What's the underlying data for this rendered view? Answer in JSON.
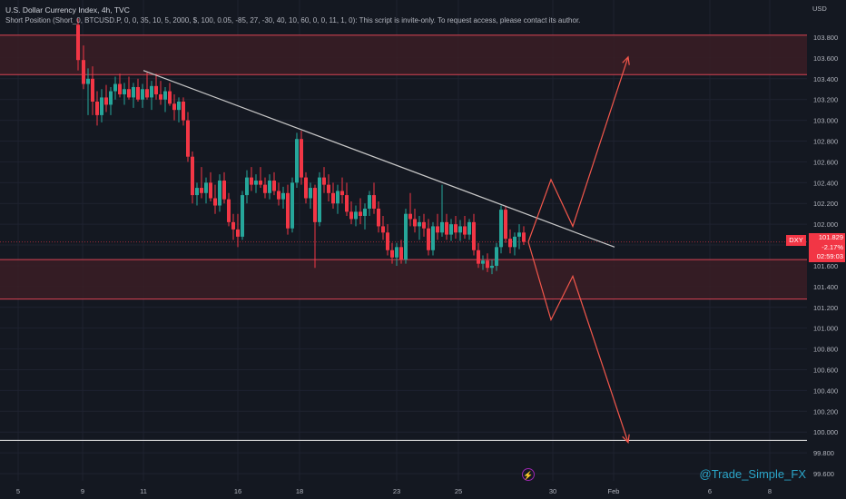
{
  "header": {
    "title": "U.S. Dollar Currency Index, 4h, TVC",
    "indicator": "Short Position (Short_0, BTCUSD.P, 0, 0, 35, 10, 5, 2000, $, 100, 0.05, -85, 27, -30, 40, 10, 60, 0, 0, 11, 1, 0): This script is invite-only. To request access, please contact its author."
  },
  "price_axis": {
    "currency": "USD",
    "ticks": [
      "103.800",
      "103.600",
      "103.400",
      "103.200",
      "103.000",
      "102.800",
      "102.600",
      "102.400",
      "102.200",
      "102.000",
      "101.800",
      "101.600",
      "101.400",
      "101.200",
      "101.000",
      "100.800",
      "100.600",
      "100.400",
      "100.200",
      "100.000",
      "99.800",
      "99.600"
    ]
  },
  "time_axis": {
    "ticks": [
      "5",
      "9",
      "11",
      "16",
      "18",
      "23",
      "25",
      "30",
      "Feb",
      "6",
      "8"
    ]
  },
  "current_price": {
    "symbol": "DXY",
    "price": "101.829",
    "change": "-2.17%",
    "countdown": "02:59:03"
  },
  "watermark": "@Trade_Simple_FX",
  "lightning_icon": "lightning-icon",
  "colors": {
    "background": "#141821",
    "bull": "#26a69a",
    "bear": "#f23645",
    "zone_fill": "#3a1d24",
    "zone_border": "#d94353",
    "trendline": "#c8c8c8",
    "projection": "#f4574b",
    "grid": "#1e2230"
  },
  "chart_data": {
    "type": "candlestick",
    "timeframe": "4h",
    "y_range": [
      99.55,
      103.98
    ],
    "resistance_zone": [
      103.44,
      103.82
    ],
    "support_zone": [
      101.28,
      101.66
    ],
    "horizontal_line": 99.92,
    "trendline": {
      "from": {
        "x": 158,
        "y": 103.48
      },
      "to": {
        "x": 677,
        "y": 101.78
      }
    },
    "projection_up": [
      [
        582,
        101.83
      ],
      [
        607,
        102.43
      ],
      [
        631,
        101.98
      ],
      [
        692,
        103.61
      ]
    ],
    "projection_down": [
      [
        582,
        101.83
      ],
      [
        607,
        101.08
      ],
      [
        631,
        101.5
      ],
      [
        692,
        99.9
      ]
    ],
    "candles": [
      [
        86,
        103.92,
        103.98,
        103.48,
        103.58
      ],
      [
        92,
        103.58,
        103.72,
        103.3,
        103.35
      ],
      [
        97,
        103.35,
        103.5,
        103.05,
        103.4
      ],
      [
        102,
        103.4,
        103.52,
        103.05,
        103.18
      ],
      [
        107,
        103.18,
        103.28,
        102.95,
        103.05
      ],
      [
        112,
        103.05,
        103.3,
        102.98,
        103.22
      ],
      [
        117,
        103.22,
        103.34,
        103.08,
        103.15
      ],
      [
        122,
        103.15,
        103.32,
        103.05,
        103.28
      ],
      [
        127,
        103.28,
        103.42,
        103.2,
        103.35
      ],
      [
        132,
        103.35,
        103.45,
        103.22,
        103.25
      ],
      [
        137,
        103.25,
        103.36,
        103.15,
        103.3
      ],
      [
        142,
        103.3,
        103.42,
        103.2,
        103.22
      ],
      [
        147,
        103.22,
        103.36,
        103.12,
        103.32
      ],
      [
        152,
        103.32,
        103.4,
        103.18,
        103.2
      ],
      [
        157,
        103.2,
        103.35,
        103.12,
        103.3
      ],
      [
        162,
        103.3,
        103.46,
        103.2,
        103.22
      ],
      [
        167,
        103.22,
        103.38,
        103.1,
        103.33
      ],
      [
        172,
        103.33,
        103.45,
        103.2,
        103.25
      ],
      [
        177,
        103.25,
        103.38,
        103.15,
        103.2
      ],
      [
        182,
        103.2,
        103.32,
        103.08,
        103.28
      ],
      [
        187,
        103.28,
        103.36,
        103.14,
        103.16
      ],
      [
        192,
        103.16,
        103.25,
        103.0,
        103.1
      ],
      [
        197,
        103.1,
        103.22,
        102.98,
        103.18
      ],
      [
        202,
        103.18,
        103.22,
        102.95,
        103.0
      ],
      [
        207,
        103.0,
        103.08,
        102.6,
        102.65
      ],
      [
        212,
        102.65,
        102.7,
        102.2,
        102.28
      ],
      [
        217,
        102.28,
        102.4,
        102.18,
        102.35
      ],
      [
        222,
        102.35,
        102.55,
        102.25,
        102.3
      ],
      [
        227,
        102.3,
        102.45,
        102.2,
        102.4
      ],
      [
        232,
        102.4,
        102.5,
        102.22,
        102.25
      ],
      [
        237,
        102.25,
        102.38,
        102.1,
        102.18
      ],
      [
        242,
        102.18,
        102.48,
        102.12,
        102.42
      ],
      [
        247,
        102.42,
        102.5,
        102.2,
        102.24
      ],
      [
        252,
        102.24,
        102.3,
        101.98,
        102.02
      ],
      [
        257,
        102.02,
        102.1,
        101.85,
        101.95
      ],
      [
        262,
        101.95,
        102.1,
        101.78,
        101.88
      ],
      [
        267,
        101.88,
        102.32,
        101.85,
        102.28
      ],
      [
        272,
        102.28,
        102.52,
        102.2,
        102.45
      ],
      [
        277,
        102.45,
        102.55,
        102.32,
        102.38
      ],
      [
        282,
        102.38,
        102.48,
        102.3,
        102.42
      ],
      [
        287,
        102.42,
        102.55,
        102.35,
        102.38
      ],
      [
        292,
        102.38,
        102.45,
        102.25,
        102.3
      ],
      [
        297,
        102.3,
        102.48,
        102.24,
        102.42
      ],
      [
        302,
        102.42,
        102.5,
        102.28,
        102.32
      ],
      [
        307,
        102.32,
        102.4,
        102.18,
        102.24
      ],
      [
        312,
        102.24,
        102.36,
        102.15,
        102.3
      ],
      [
        317,
        102.3,
        102.38,
        101.9,
        101.96
      ],
      [
        322,
        101.96,
        102.45,
        101.92,
        102.4
      ],
      [
        327,
        102.4,
        102.88,
        102.35,
        102.82
      ],
      [
        332,
        102.82,
        102.9,
        102.38,
        102.45
      ],
      [
        337,
        102.45,
        102.5,
        102.2,
        102.25
      ],
      [
        342,
        102.25,
        102.4,
        102.15,
        102.35
      ],
      [
        347,
        102.35,
        102.38,
        101.58,
        102.02
      ],
      [
        352,
        102.02,
        102.5,
        101.98,
        102.45
      ],
      [
        357,
        102.45,
        102.55,
        102.3,
        102.38
      ],
      [
        362,
        102.38,
        102.48,
        102.22,
        102.3
      ],
      [
        367,
        102.3,
        102.4,
        102.15,
        102.2
      ],
      [
        372,
        102.2,
        102.38,
        102.1,
        102.32
      ],
      [
        377,
        102.32,
        102.45,
        102.2,
        102.28
      ],
      [
        382,
        102.28,
        102.4,
        102.08,
        102.12
      ],
      [
        387,
        102.12,
        102.22,
        102.0,
        102.05
      ],
      [
        392,
        102.05,
        102.18,
        101.98,
        102.12
      ],
      [
        397,
        102.12,
        102.25,
        102.0,
        102.08
      ],
      [
        402,
        102.08,
        102.2,
        101.95,
        102.15
      ],
      [
        407,
        102.15,
        102.32,
        102.08,
        102.28
      ],
      [
        412,
        102.28,
        102.4,
        102.1,
        102.15
      ],
      [
        417,
        102.15,
        102.22,
        101.92,
        101.98
      ],
      [
        422,
        101.98,
        102.08,
        101.85,
        101.92
      ],
      [
        427,
        101.92,
        102.0,
        101.7,
        101.75
      ],
      [
        432,
        101.75,
        101.82,
        101.62,
        101.68
      ],
      [
        437,
        101.68,
        101.82,
        101.6,
        101.78
      ],
      [
        442,
        101.78,
        101.85,
        101.62,
        101.66
      ],
      [
        447,
        101.66,
        102.15,
        101.62,
        102.1
      ],
      [
        452,
        102.1,
        102.3,
        101.98,
        102.05
      ],
      [
        457,
        102.05,
        102.15,
        101.92,
        101.98
      ],
      [
        462,
        101.98,
        102.08,
        101.85,
        102.02
      ],
      [
        467,
        102.02,
        102.1,
        101.88,
        101.96
      ],
      [
        472,
        101.96,
        102.05,
        101.7,
        101.75
      ],
      [
        477,
        101.75,
        102.02,
        101.7,
        101.98
      ],
      [
        482,
        101.98,
        102.1,
        101.85,
        101.92
      ],
      [
        487,
        101.92,
        102.38,
        101.88,
        102.02
      ],
      [
        492,
        102.02,
        102.1,
        101.85,
        101.9
      ],
      [
        497,
        101.9,
        102.05,
        101.84,
        102.0
      ],
      [
        502,
        102.0,
        102.08,
        101.86,
        101.92
      ],
      [
        507,
        101.92,
        102.04,
        101.84,
        101.98
      ],
      [
        512,
        101.98,
        102.08,
        101.86,
        101.9
      ],
      [
        517,
        101.9,
        102.05,
        101.85,
        102.02
      ],
      [
        522,
        102.02,
        102.1,
        101.7,
        101.75
      ],
      [
        527,
        101.75,
        101.82,
        101.58,
        101.62
      ],
      [
        532,
        101.62,
        101.7,
        101.56,
        101.65
      ],
      [
        537,
        101.65,
        101.72,
        101.54,
        101.58
      ],
      [
        542,
        101.58,
        101.66,
        101.52,
        101.6
      ],
      [
        547,
        101.6,
        101.82,
        101.55,
        101.78
      ],
      [
        552,
        101.78,
        102.18,
        101.72,
        102.14
      ],
      [
        557,
        102.14,
        102.18,
        101.82,
        101.86
      ],
      [
        562,
        101.86,
        101.95,
        101.72,
        101.78
      ],
      [
        567,
        101.78,
        101.92,
        101.7,
        101.88
      ],
      [
        572,
        101.88,
        102.0,
        101.76,
        101.92
      ],
      [
        577,
        101.92,
        101.98,
        101.8,
        101.83
      ]
    ]
  }
}
